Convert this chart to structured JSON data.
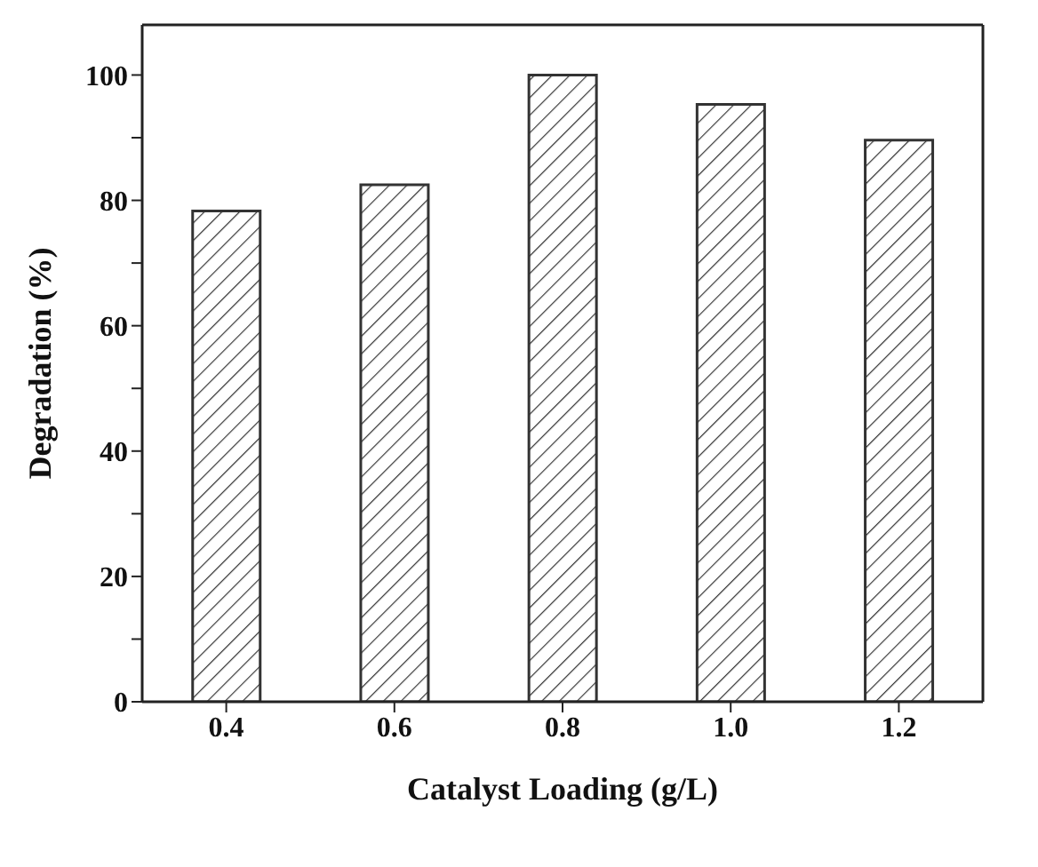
{
  "chart_data": {
    "type": "bar",
    "xlabel": "Catalyst Loading (g/L)",
    "ylabel": "Degradation (%)",
    "categories": [
      "0.4",
      "0.6",
      "0.8",
      "1.0",
      "1.2"
    ],
    "values": [
      78.3,
      82.5,
      100,
      95.3,
      89.6
    ],
    "color": "#333333",
    "ylim": [
      0,
      108
    ],
    "yticks": [
      0,
      {
        "value": 10,
        "label": null
      },
      20,
      {
        "value": 30,
        "label": null
      },
      40,
      {
        "value": 50,
        "label": null
      },
      60,
      {
        "value": 70,
        "label": null
      },
      80,
      {
        "value": 90,
        "label": null
      },
      100
    ]
  }
}
